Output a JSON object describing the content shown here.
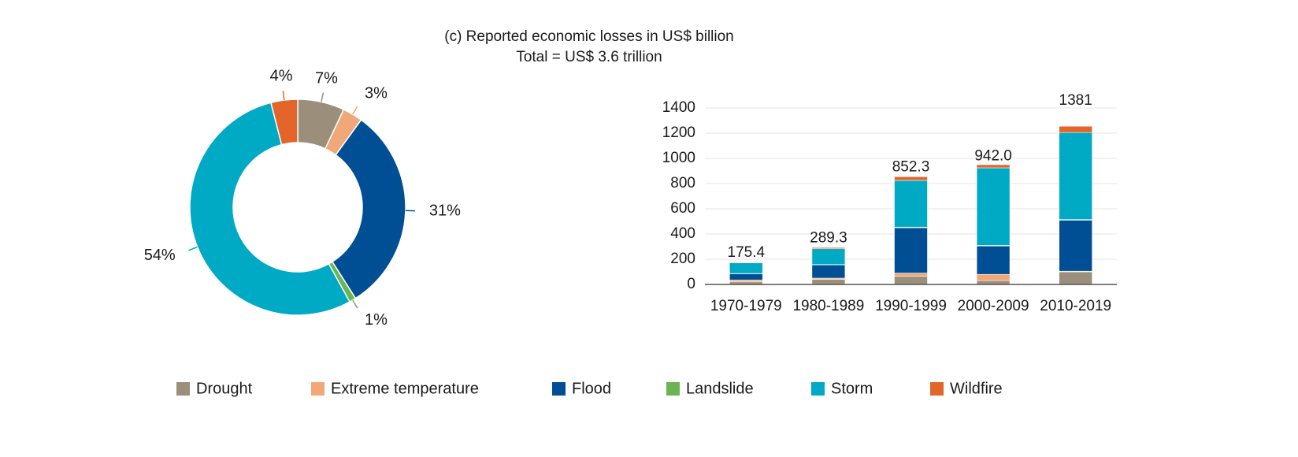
{
  "chart_data": [
    {
      "type": "pie",
      "title": "(c) Reported economic losses in US$ billion",
      "subtitle": "Total =  US$ 3.6 trillion",
      "values": [
        7,
        3,
        31,
        1,
        54,
        4
      ],
      "value_labels": [
        "7%",
        "3%",
        "31%",
        "1%",
        "54%",
        "4%"
      ],
      "colors": [
        "#9b8f7c",
        "#f0a878",
        "#004f95",
        "#6ab552",
        "#00aac4",
        "#e3652a"
      ],
      "donut": true
    },
    {
      "type": "bar",
      "stacked": true,
      "categories": [
        "1970-1979",
        "1980-1989",
        "1990-1999",
        "2000-2009",
        "2010-2019"
      ],
      "series": [
        {
          "name": "Drought",
          "color": "#9b8f7c",
          "values": [
            20,
            40,
            65,
            30,
            100
          ]
        },
        {
          "name": "Extreme temperature",
          "color": "#f0a878",
          "values": [
            15,
            10,
            25,
            50,
            5
          ]
        },
        {
          "name": "Flood",
          "color": "#004f95",
          "values": [
            50,
            105,
            360,
            225,
            405
          ]
        },
        {
          "name": "Landslide",
          "color": "#6ab552",
          "values": [
            2,
            3,
            5,
            5,
            5
          ]
        },
        {
          "name": "Storm",
          "color": "#00aac4",
          "values": [
            85,
            125,
            370,
            615,
            690
          ]
        },
        {
          "name": "Wildfire",
          "color": "#e3652a",
          "values": [
            3,
            10,
            30,
            25,
            50
          ]
        }
      ],
      "totals": {
        "values": [
          175.4,
          289.3,
          852.3,
          942.0,
          1381
        ],
        "value_labels": [
          "175.4",
          "289.3",
          "852.3",
          "942.0",
          "1381"
        ]
      },
      "ylim": [
        0,
        1400
      ],
      "yticks": [
        0,
        200,
        400,
        600,
        800,
        1000,
        1200,
        1400
      ],
      "grid": true
    }
  ]
}
